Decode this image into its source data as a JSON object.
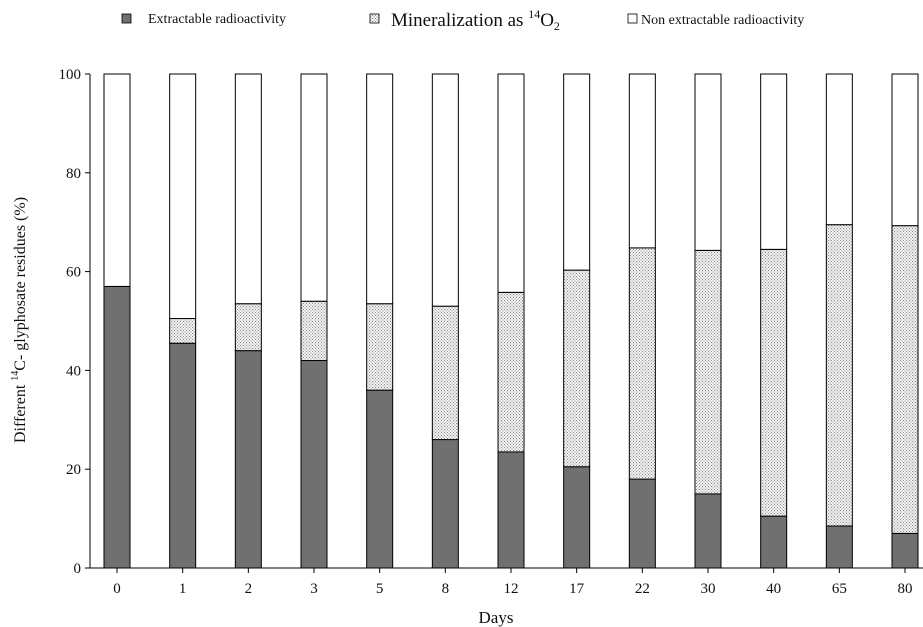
{
  "chart_data": {
    "type": "bar",
    "stacked": true,
    "title": "",
    "xlabel": "Days",
    "ylabel_parts": {
      "prefix": "Different ",
      "sup": "14",
      "suffix": "C- glyphosate residues  (%)"
    },
    "ylim": [
      0,
      100
    ],
    "yticks": [
      0,
      20,
      40,
      60,
      80,
      100
    ],
    "grid": false,
    "legend_position": "top",
    "categories": [
      "0",
      "1",
      "2",
      "3",
      "5",
      "8",
      "12",
      "17",
      "22",
      "30",
      "40",
      "65",
      "80"
    ],
    "series": [
      {
        "key": "extractable",
        "name": "Extractable radioactivity",
        "color": "#707070",
        "pattern": "solid",
        "values": [
          57,
          45.5,
          44,
          42,
          36,
          26,
          23.5,
          20.5,
          18,
          15,
          10.5,
          8.5,
          7
        ]
      },
      {
        "key": "mineralization",
        "name_parts": {
          "prefix": "Mineralization as ",
          "sup": "14",
          "base": "O",
          "sub": "2"
        },
        "color": "#e0e0e0",
        "pattern": "dotted",
        "values": [
          0,
          5,
          9.5,
          12,
          17.5,
          27,
          32.3,
          39.8,
          46.8,
          49.3,
          54,
          61,
          62.3
        ]
      },
      {
        "key": "non_extractable",
        "name": "Non extractable radioactivity",
        "color": "#ffffff",
        "pattern": "solid",
        "values": [
          43,
          49.5,
          46.5,
          46,
          46.5,
          47,
          44.2,
          39.7,
          35.2,
          35.7,
          35.5,
          30.5,
          30.7
        ]
      }
    ]
  }
}
